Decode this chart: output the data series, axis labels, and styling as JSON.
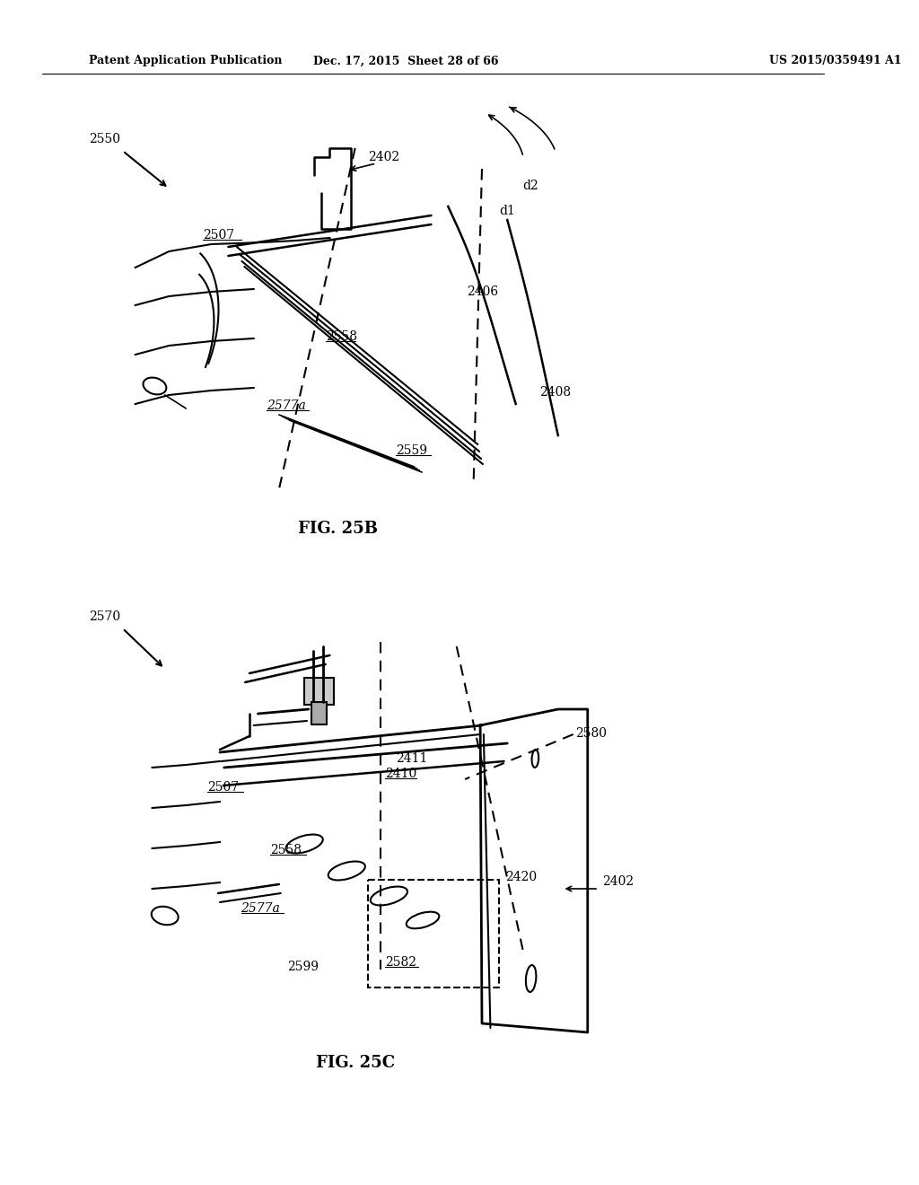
{
  "background_color": "#ffffff",
  "text_color": "#000000",
  "line_color": "#000000",
  "header": {
    "left": "Patent Application Publication",
    "center": "Dec. 17, 2015  Sheet 28 of 66",
    "right": "US 2015/0359491 A1"
  },
  "fig25b": {
    "caption": "FIG. 25B",
    "label_2550": "2550",
    "label_2402": "2402",
    "label_2507": "2507",
    "label_2406": "2406",
    "label_2408": "2408",
    "label_2558": "2558",
    "label_2577a": "2577a",
    "label_2559": "2559",
    "label_d1": "d1",
    "label_d2": "d2"
  },
  "fig25c": {
    "caption": "FIG. 25C",
    "label_2570": "2570",
    "label_2507": "2507",
    "label_2411": "2411",
    "label_2410": "2410",
    "label_2558": "2558",
    "label_2577a": "2577a",
    "label_2580": "2580",
    "label_2420": "2420",
    "label_2402": "2402",
    "label_2582": "2582",
    "label_2599": "2599"
  }
}
